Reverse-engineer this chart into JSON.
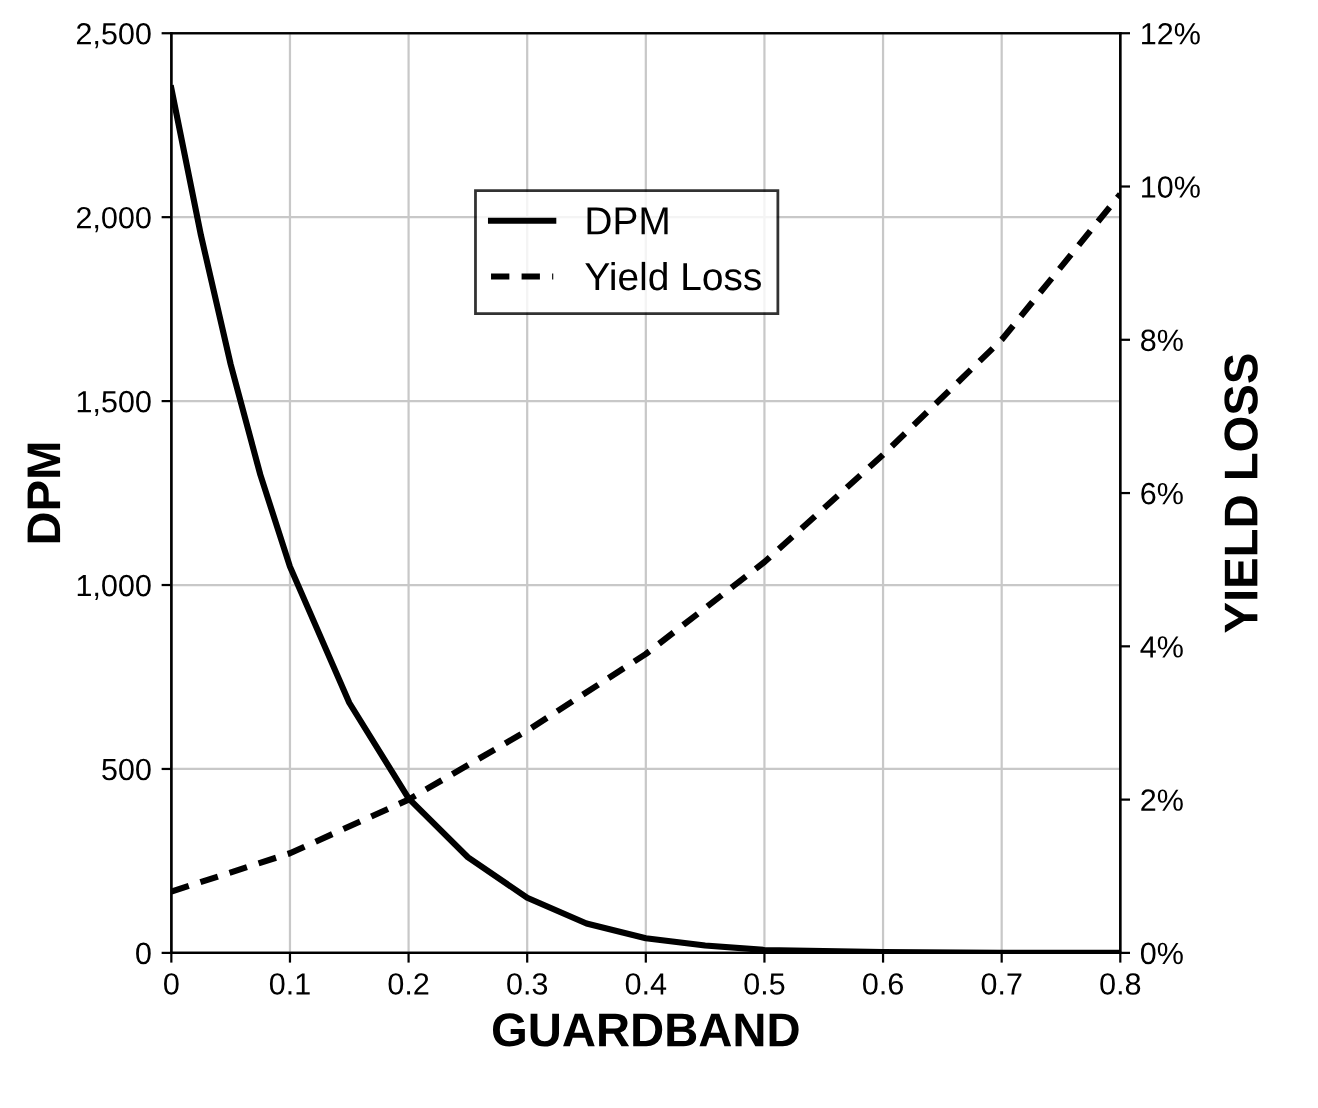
{
  "chart_data": {
    "type": "line",
    "xlabel": "GUARDBAND",
    "ylabel": "DPM",
    "y2label": "YIELD LOSS",
    "xlim": [
      0,
      0.8
    ],
    "xticks": [
      0,
      0.1,
      0.2,
      0.3,
      0.4,
      0.5,
      0.6,
      0.7,
      0.8
    ],
    "ylim": [
      0,
      2500
    ],
    "yticks": [
      {
        "value": 0,
        "label": "0"
      },
      {
        "value": 500,
        "label": "500"
      },
      {
        "value": 1000,
        "label": "1,000"
      },
      {
        "value": 1500,
        "label": "1,500"
      },
      {
        "value": 2000,
        "label": "2,000"
      },
      {
        "value": 2500,
        "label": "2,500"
      }
    ],
    "y2lim": [
      0,
      12
    ],
    "y2ticks": [
      {
        "value": 0,
        "label": "0%"
      },
      {
        "value": 2,
        "label": "2%"
      },
      {
        "value": 4,
        "label": "4%"
      },
      {
        "value": 6,
        "label": "6%"
      },
      {
        "value": 8,
        "label": "8%"
      },
      {
        "value": 10,
        "label": "10%"
      },
      {
        "value": 12,
        "label": "12%"
      }
    ],
    "grid": true,
    "legend": "top",
    "marker": "none",
    "series": [
      {
        "name": "DPM",
        "color": "#000000",
        "line_style": "solid",
        "x": [
          0,
          0.025,
          0.05,
          0.075,
          0.1,
          0.15,
          0.2,
          0.25,
          0.3,
          0.35,
          0.4,
          0.45,
          0.5,
          0.6,
          0.7,
          0.8
        ],
        "values": [
          2350,
          1950,
          1600,
          1300,
          1050,
          680,
          420,
          260,
          150,
          80,
          40,
          20,
          8,
          2,
          0,
          0
        ]
      },
      {
        "name": "Yield Loss",
        "color": "#000000",
        "line_style": "dashed",
        "axis": "y2",
        "x": [
          0,
          0.1,
          0.2,
          0.3,
          0.4,
          0.5,
          0.6,
          0.7,
          0.8
        ],
        "values": [
          0.8,
          1.3,
          2.0,
          2.9,
          3.9,
          5.1,
          6.5,
          8.0,
          9.9
        ]
      }
    ]
  }
}
